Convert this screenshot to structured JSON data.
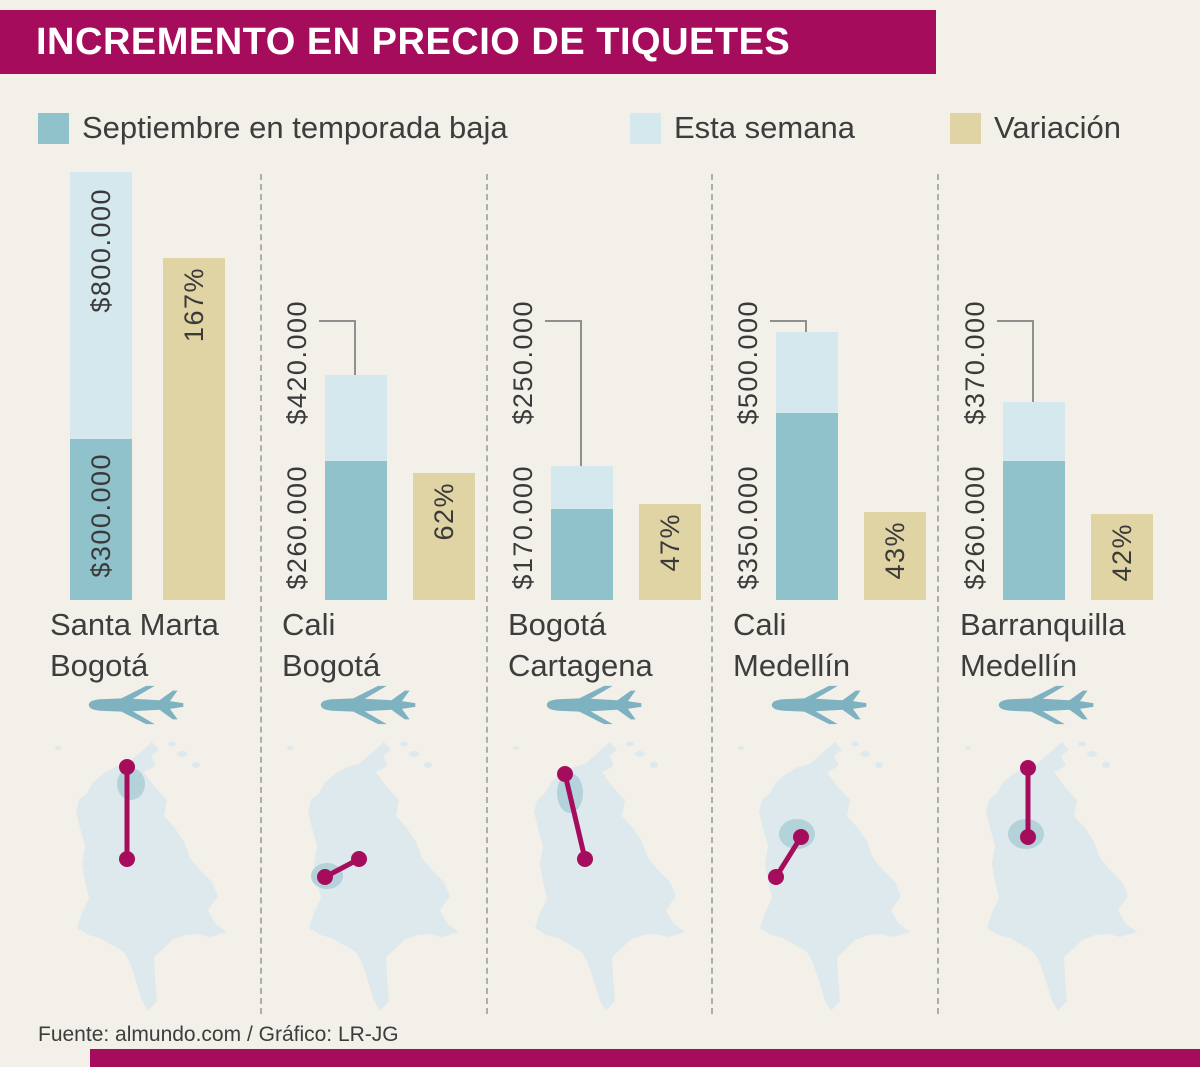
{
  "title": "INCREMENTO EN PRECIO DE TIQUETES",
  "legend": {
    "items": [
      {
        "label": "Septiembre en temporada baja",
        "color": "#90c2cb"
      },
      {
        "label": "Esta semana",
        "color": "#d5e8ee"
      },
      {
        "label": "Variación",
        "color": "#e0d4a4"
      }
    ]
  },
  "footer": {
    "source": "Fuente: almundo.com / Gráfico: LR-JG"
  },
  "colors": {
    "accent": "#a50d5c",
    "background": "#f3f0e9",
    "low_season": "#90c2cb",
    "this_week": "#d5e8ee",
    "variation": "#e0d4a4",
    "map": "#dde9ec",
    "map_highlight": "#b4d2da",
    "plane": "#7fb2c1",
    "text": "#3d3d3d"
  },
  "chart_data": {
    "type": "bar",
    "title": "INCREMENTO EN PRECIO DE TIQUETES",
    "unit": "COP",
    "series": [
      {
        "name": "Septiembre en temporada baja"
      },
      {
        "name": "Esta semana"
      },
      {
        "name": "Variación"
      }
    ],
    "routes": [
      {
        "from": "Santa Marta",
        "to": "Bogotá",
        "low_season": 300000,
        "low_season_label": "$300.000",
        "this_week": 800000,
        "this_week_label": "$800.000",
        "variation_pct": 167,
        "variation_label": "167%"
      },
      {
        "from": "Cali",
        "to": "Bogotá",
        "low_season": 260000,
        "low_season_label": "$260.000",
        "this_week": 420000,
        "this_week_label": "$420.000",
        "variation_pct": 62,
        "variation_label": "62%"
      },
      {
        "from": "Bogotá",
        "to": "Cartagena",
        "low_season": 170000,
        "low_season_label": "$170.000",
        "this_week": 250000,
        "this_week_label": "$250.000",
        "variation_pct": 47,
        "variation_label": "47%"
      },
      {
        "from": "Cali",
        "to": "Medellín",
        "low_season": 350000,
        "low_season_label": "$350.000",
        "this_week": 500000,
        "this_week_label": "$500.000",
        "variation_pct": 43,
        "variation_label": "43%"
      },
      {
        "from": "Barranquilla",
        "to": "Medellín",
        "low_season": 260000,
        "low_season_label": "$260.000",
        "this_week": 370000,
        "this_week_label": "$370.000",
        "variation_pct": 42,
        "variation_label": "42%"
      }
    ]
  }
}
